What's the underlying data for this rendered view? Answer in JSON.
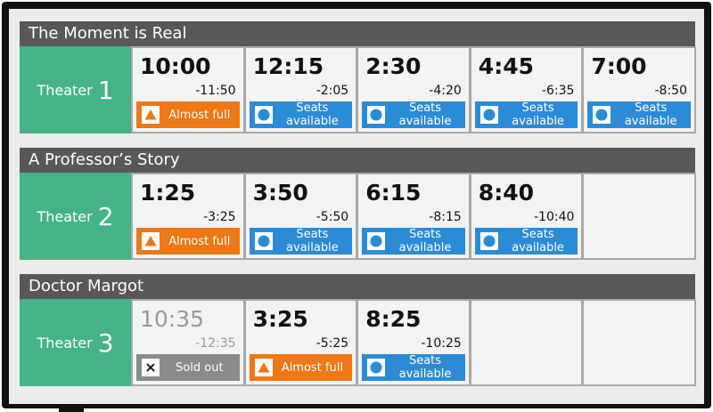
{
  "screens": [
    {
      "title": "The Moment is Real",
      "theater_label": "Theater",
      "theater_number": "1",
      "showtimes": [
        {
          "start": "10:00",
          "end": "-11:50",
          "status": "Almost full",
          "color": "#ee7716",
          "icon": "triangle"
        },
        {
          "start": "12:15",
          "end": "-2:05",
          "status": "Seats available",
          "color": "#2c8bd6",
          "icon": "circle"
        },
        {
          "start": "2:30",
          "end": "-4:20",
          "status": "Seats available",
          "color": "#2c8bd6",
          "icon": "circle"
        },
        {
          "start": "4:45",
          "end": "-6:35",
          "status": "Seats available",
          "color": "#2c8bd6",
          "icon": "circle"
        },
        {
          "start": "7:00",
          "end": "-8:50",
          "status": "Seats available",
          "color": "#2c8bd6",
          "icon": "circle"
        }
      ]
    },
    {
      "title": "A Professor’s Story",
      "theater_label": "Theater",
      "theater_number": "2",
      "showtimes": [
        {
          "start": "1:25",
          "end": "-3:25",
          "status": "Almost full",
          "color": "#ee7716",
          "icon": "triangle"
        },
        {
          "start": "3:50",
          "end": "-5:50",
          "status": "Seats available",
          "color": "#2c8bd6",
          "icon": "circle"
        },
        {
          "start": "6:15",
          "end": "-8:15",
          "status": "Seats available",
          "color": "#2c8bd6",
          "icon": "circle"
        },
        {
          "start": "8:40",
          "end": "-10:40",
          "status": "Seats available",
          "color": "#2c8bd6",
          "icon": "circle"
        }
      ]
    },
    {
      "title": "Doctor Margot",
      "theater_label": "Theater",
      "theater_number": "3",
      "showtimes": [
        {
          "start": "10:35",
          "end": "-12:35",
          "status": "Sold out",
          "color": "#8a8a8a",
          "icon": "cross",
          "time_color": "#9a9a9a"
        },
        {
          "start": "3:25",
          "end": "-5:25",
          "status": "Almost full",
          "color": "#ee7716",
          "icon": "triangle"
        },
        {
          "start": "8:25",
          "end": "-10:25",
          "status": "Seats available",
          "color": "#2c8bd6",
          "icon": "circle"
        }
      ]
    }
  ]
}
